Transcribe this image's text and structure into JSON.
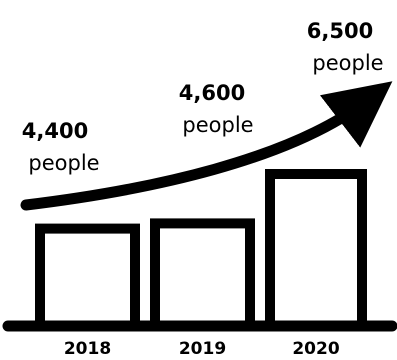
{
  "chart_data": {
    "type": "bar",
    "categories": [
      "2018",
      "2019",
      "2020"
    ],
    "values": [
      4400,
      4600,
      6500
    ],
    "data_labels": [
      "4,400",
      "4,600",
      "6,500"
    ],
    "unit": "people",
    "title": "",
    "xlabel": "",
    "ylabel": "",
    "grid": false,
    "trend_arrow": true,
    "color": "#000000"
  }
}
